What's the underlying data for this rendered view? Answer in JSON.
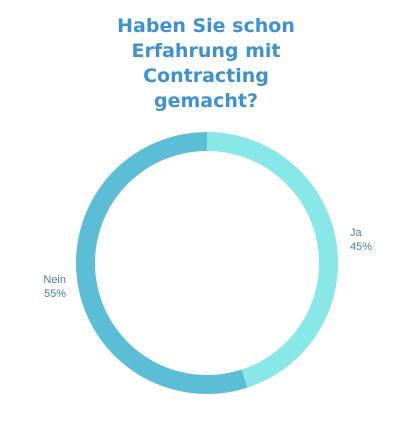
{
  "chart_data": {
    "type": "pie",
    "title_lines": [
      "Haben Sie schon",
      "Erfahrung mit",
      "Contracting",
      "gemacht?"
    ],
    "slices": [
      {
        "label": "Ja",
        "value": 45,
        "value_label": "45%",
        "color": "#88e8e8"
      },
      {
        "label": "Nein",
        "value": 55,
        "value_label": "55%",
        "color": "#5cbdd6"
      }
    ],
    "donut": true,
    "start": "top",
    "direction": "clockwise"
  }
}
